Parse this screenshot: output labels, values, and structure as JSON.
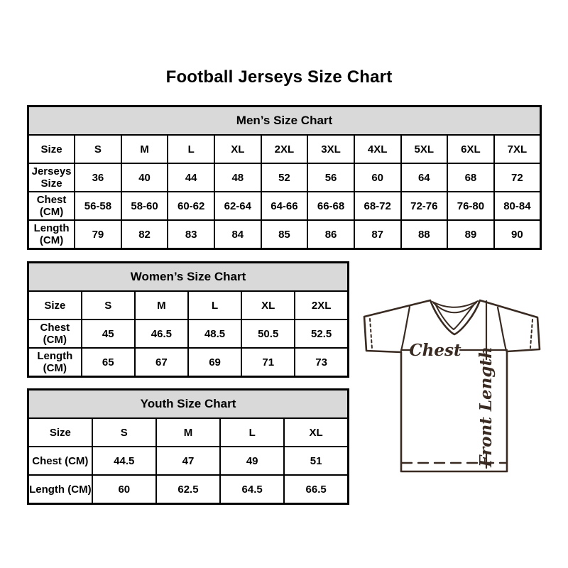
{
  "title": "Football Jerseys Size Chart",
  "tables": [
    {
      "title": "Men’s Size Chart",
      "corner_label": "Size",
      "columns": [
        "S",
        "M",
        "L",
        "XL",
        "2XL",
        "3XL",
        "4XL",
        "5XL",
        "6XL",
        "7XL"
      ],
      "rows": [
        {
          "label": "Jerseys Size",
          "values": [
            "36",
            "40",
            "44",
            "48",
            "52",
            "56",
            "60",
            "64",
            "68",
            "72"
          ]
        },
        {
          "label": "Chest (CM)",
          "values": [
            "56-58",
            "58-60",
            "60-62",
            "62-64",
            "64-66",
            "66-68",
            "68-72",
            "72-76",
            "76-80",
            "80-84"
          ]
        },
        {
          "label": "Length (CM)",
          "values": [
            "79",
            "82",
            "83",
            "84",
            "85",
            "86",
            "87",
            "88",
            "89",
            "90"
          ]
        }
      ]
    },
    {
      "title": "Women’s Size Chart",
      "corner_label": "Size",
      "columns": [
        "S",
        "M",
        "L",
        "XL",
        "2XL"
      ],
      "rows": [
        {
          "label": "Chest (CM)",
          "values": [
            "45",
            "46.5",
            "48.5",
            "50.5",
            "52.5"
          ]
        },
        {
          "label": "Length (CM)",
          "values": [
            "65",
            "67",
            "69",
            "71",
            "73"
          ]
        }
      ]
    },
    {
      "title": "Youth Size Chart",
      "corner_label": "Size",
      "columns": [
        "S",
        "M",
        "L",
        "XL"
      ],
      "rows": [
        {
          "label": "Chest (CM)",
          "values": [
            "44.5",
            "47",
            "49",
            "51"
          ]
        },
        {
          "label": "Length (CM)",
          "values": [
            "60",
            "62.5",
            "64.5",
            "66.5"
          ]
        }
      ]
    }
  ],
  "diagram": {
    "chest_label": "Chest",
    "front_length_label": "Front Length"
  },
  "colors": {
    "background": "#ffffff",
    "table_header_bg": "#d9d9d9",
    "table_border": "#000000",
    "text": "#000000",
    "jersey_line": "#3a2b22"
  }
}
